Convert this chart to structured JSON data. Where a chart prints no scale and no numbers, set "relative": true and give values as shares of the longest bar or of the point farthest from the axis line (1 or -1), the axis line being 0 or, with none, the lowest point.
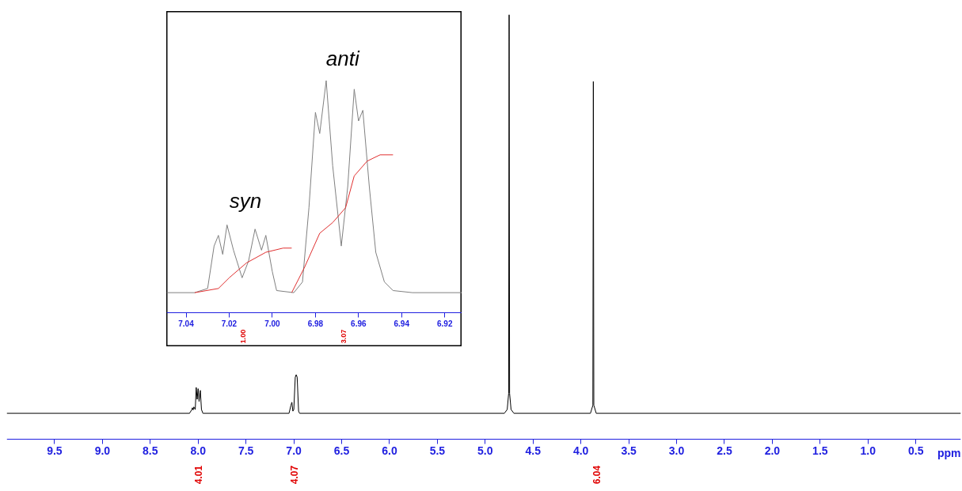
{
  "chart_data": [
    {
      "type": "line",
      "relative": true,
      "xlabel": "ppm",
      "xlim": [
        10.0,
        0.03
      ],
      "xticks": [
        9.5,
        {
          "value": 9,
          "label": "9.0"
        },
        8.5,
        {
          "value": 8,
          "label": "8.0"
        },
        7.5,
        {
          "value": 7,
          "label": "7.0"
        },
        6.5,
        {
          "value": 6,
          "label": "6.0"
        },
        5.5,
        {
          "value": 5,
          "label": "5.0"
        },
        4.5,
        {
          "value": 4,
          "label": "4.0"
        },
        3.5,
        {
          "value": 3,
          "label": "3.0"
        },
        2.5,
        {
          "value": 2,
          "label": "2.0"
        },
        1.5,
        {
          "value": 1,
          "label": "1.0"
        },
        0.5
      ],
      "tick_labels": "x",
      "series": [
        {
          "color": "#000000",
          "x": [
            10.0,
            8.09,
            8.065,
            8.06,
            8.052,
            8.045,
            8.03,
            8.02,
            8.01,
            8.0,
            7.99,
            7.977,
            7.965,
            7.95,
            7.05,
            7.03,
            7.02,
            7.01,
            7.0,
            6.985,
            6.975,
            6.965,
            6.95,
            6.94,
            4.8,
            4.77,
            4.755,
            4.75,
            4.745,
            4.73,
            4.7,
            3.9,
            3.875,
            3.87,
            3.865,
            3.84,
            0.03
          ],
          "values": [
            0.061,
            0.061,
            0.07,
            0.074,
            0.069,
            0.076,
            0.07,
            0.122,
            0.094,
            0.119,
            0.089,
            0.115,
            0.07,
            0.061,
            0.061,
            0.08,
            0.087,
            0.066,
            0.07,
            0.146,
            0.152,
            0.146,
            0.066,
            0.061,
            0.061,
            0.07,
            0.108,
            1.0,
            0.108,
            0.07,
            0.061,
            0.061,
            0.08,
            0.843,
            0.08,
            0.061,
            0.061
          ]
        }
      ],
      "annotations": [
        "4.01",
        "4.07",
        "6.04"
      ]
    },
    {
      "type": "line",
      "relative": true,
      "xlim": [
        7.049,
        6.912
      ],
      "xticks": [
        7.04,
        7.02,
        {
          "value": 7,
          "label": "7.00"
        },
        6.98,
        6.96,
        6.94,
        6.92
      ],
      "tick_labels": "x",
      "series": [
        {
          "color": "#808080",
          "x": [
            7.049,
            7.036,
            7.03,
            7.027,
            7.025,
            7.023,
            7.021,
            7.018,
            7.014,
            7.011,
            7.008,
            7.005,
            7.003,
            7.0,
            6.998,
            6.99,
            6.986,
            6.983,
            6.98,
            6.978,
            6.975,
            6.972,
            6.968,
            6.965,
            6.962,
            6.96,
            6.958,
            6.955,
            6.952,
            6.948,
            6.944,
            6.935,
            6.912
          ],
          "values": [
            0.086,
            0.086,
            0.104,
            0.287,
            0.333,
            0.251,
            0.378,
            0.269,
            0.15,
            0.223,
            0.36,
            0.269,
            0.333,
            0.177,
            0.095,
            0.086,
            0.132,
            0.452,
            0.863,
            0.772,
            1.0,
            0.634,
            0.287,
            0.543,
            0.963,
            0.826,
            0.872,
            0.543,
            0.26,
            0.132,
            0.095,
            0.086,
            0.086
          ]
        },
        {
          "color": "#e03030",
          "x": [
            7.036,
            7.025,
            7.02,
            7.012,
            7.003,
            6.995,
            6.991
          ],
          "values": [
            0.086,
            0.104,
            0.15,
            0.214,
            0.26,
            0.278,
            0.278
          ]
        },
        {
          "color": "#e03030",
          "x": [
            6.991,
            6.985,
            6.978,
            6.972,
            6.966,
            6.962,
            6.956,
            6.95,
            6.944
          ],
          "values": [
            0.086,
            0.196,
            0.342,
            0.388,
            0.452,
            0.589,
            0.653,
            0.68,
            0.68
          ]
        }
      ],
      "annotations": [
        "syn",
        "anti",
        "1.00",
        "3.07"
      ]
    }
  ]
}
